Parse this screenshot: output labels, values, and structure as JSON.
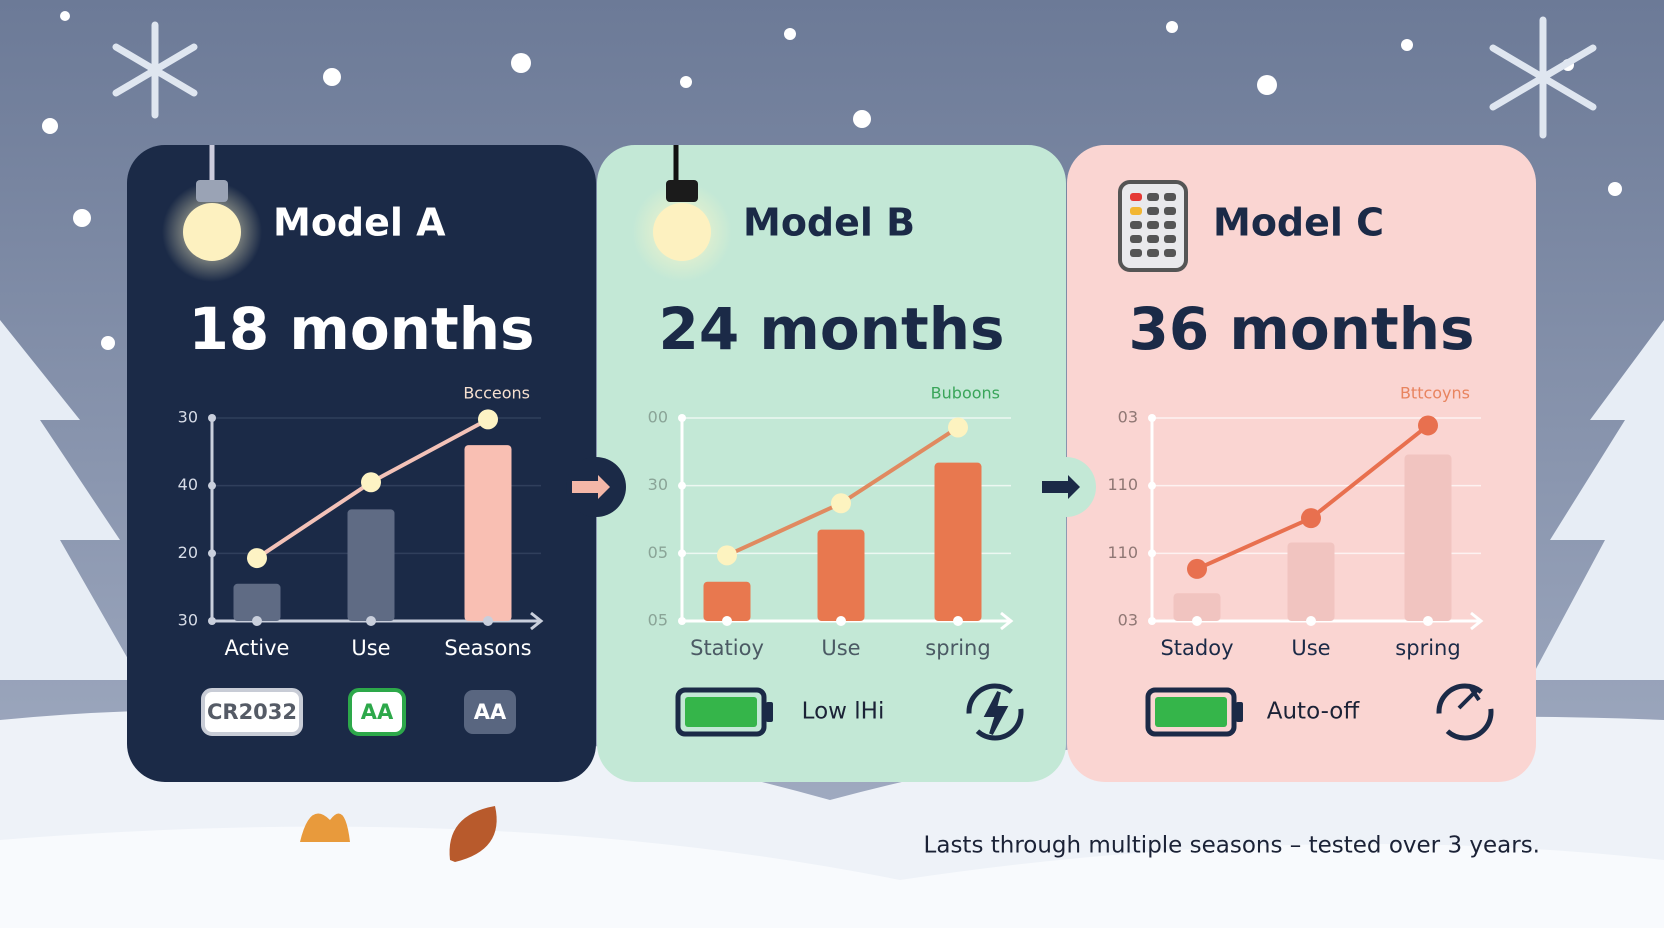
{
  "cards": [
    {
      "title": "Model A",
      "headline": "18 months",
      "legend_label": "Bcceons",
      "chart": {
        "type": "bar-line",
        "ylim": [
          0,
          3
        ],
        "yticks": [
          {
            "value": 0,
            "label": "30"
          },
          {
            "value": 1,
            "label": "20"
          },
          {
            "value": 2,
            "label": "40"
          },
          {
            "value": 3,
            "label": "30"
          }
        ],
        "categories": [
          "Active",
          "Use",
          "Seasons"
        ],
        "bars": [
          0.55,
          1.65,
          2.6
        ],
        "points": [
          0.93,
          2.05,
          2.98
        ],
        "bar_colors": [
          "#5f6b84",
          "#5f6b84",
          "#f9bfb3"
        ],
        "line_color": "#f3c2b8",
        "point_color": "#fdf3c4"
      },
      "badges": [
        "CR2032",
        "AA",
        "AA"
      ]
    },
    {
      "title": "Model B",
      "headline": "24 months",
      "legend_label": "Buboons",
      "chart": {
        "type": "bar-line",
        "ylim": [
          0,
          3
        ],
        "yticks": [
          {
            "value": 0,
            "label": "05"
          },
          {
            "value": 1,
            "label": "05"
          },
          {
            "value": 2,
            "label": "30"
          },
          {
            "value": 3,
            "label": "00"
          }
        ],
        "categories": [
          "Statioy",
          "Use",
          "spring"
        ],
        "bars": [
          0.58,
          1.35,
          2.34
        ],
        "points": [
          0.97,
          1.74,
          2.86
        ],
        "bar_colors": [
          "#e8784f",
          "#e8784f",
          "#e8784f"
        ],
        "line_color": "#e08a60",
        "point_color": "#fdf3c0"
      },
      "badges": [
        "Low lHi"
      ]
    },
    {
      "title": "Model C",
      "headline": "36 months",
      "legend_label": "Bttcoyns",
      "chart": {
        "type": "bar-line",
        "ylim": [
          0,
          3
        ],
        "yticks": [
          {
            "value": 0,
            "label": "03"
          },
          {
            "value": 1,
            "label": "110"
          },
          {
            "value": 2,
            "label": "110"
          },
          {
            "value": 3,
            "label": "03"
          }
        ],
        "categories": [
          "Stadoy",
          "Use",
          "spring"
        ],
        "bars": [
          0.41,
          1.16,
          2.46
        ],
        "points": [
          0.77,
          1.52,
          2.89
        ],
        "bar_colors": [
          "#f1c4c0",
          "#f1c4c0",
          "#f1c4c0"
        ],
        "line_color": "#e8704f",
        "point_color": "#e8704f"
      },
      "badges": [
        "Auto-off"
      ]
    }
  ],
  "footer": "Lasts through multiple seasons – tested over 3 years."
}
